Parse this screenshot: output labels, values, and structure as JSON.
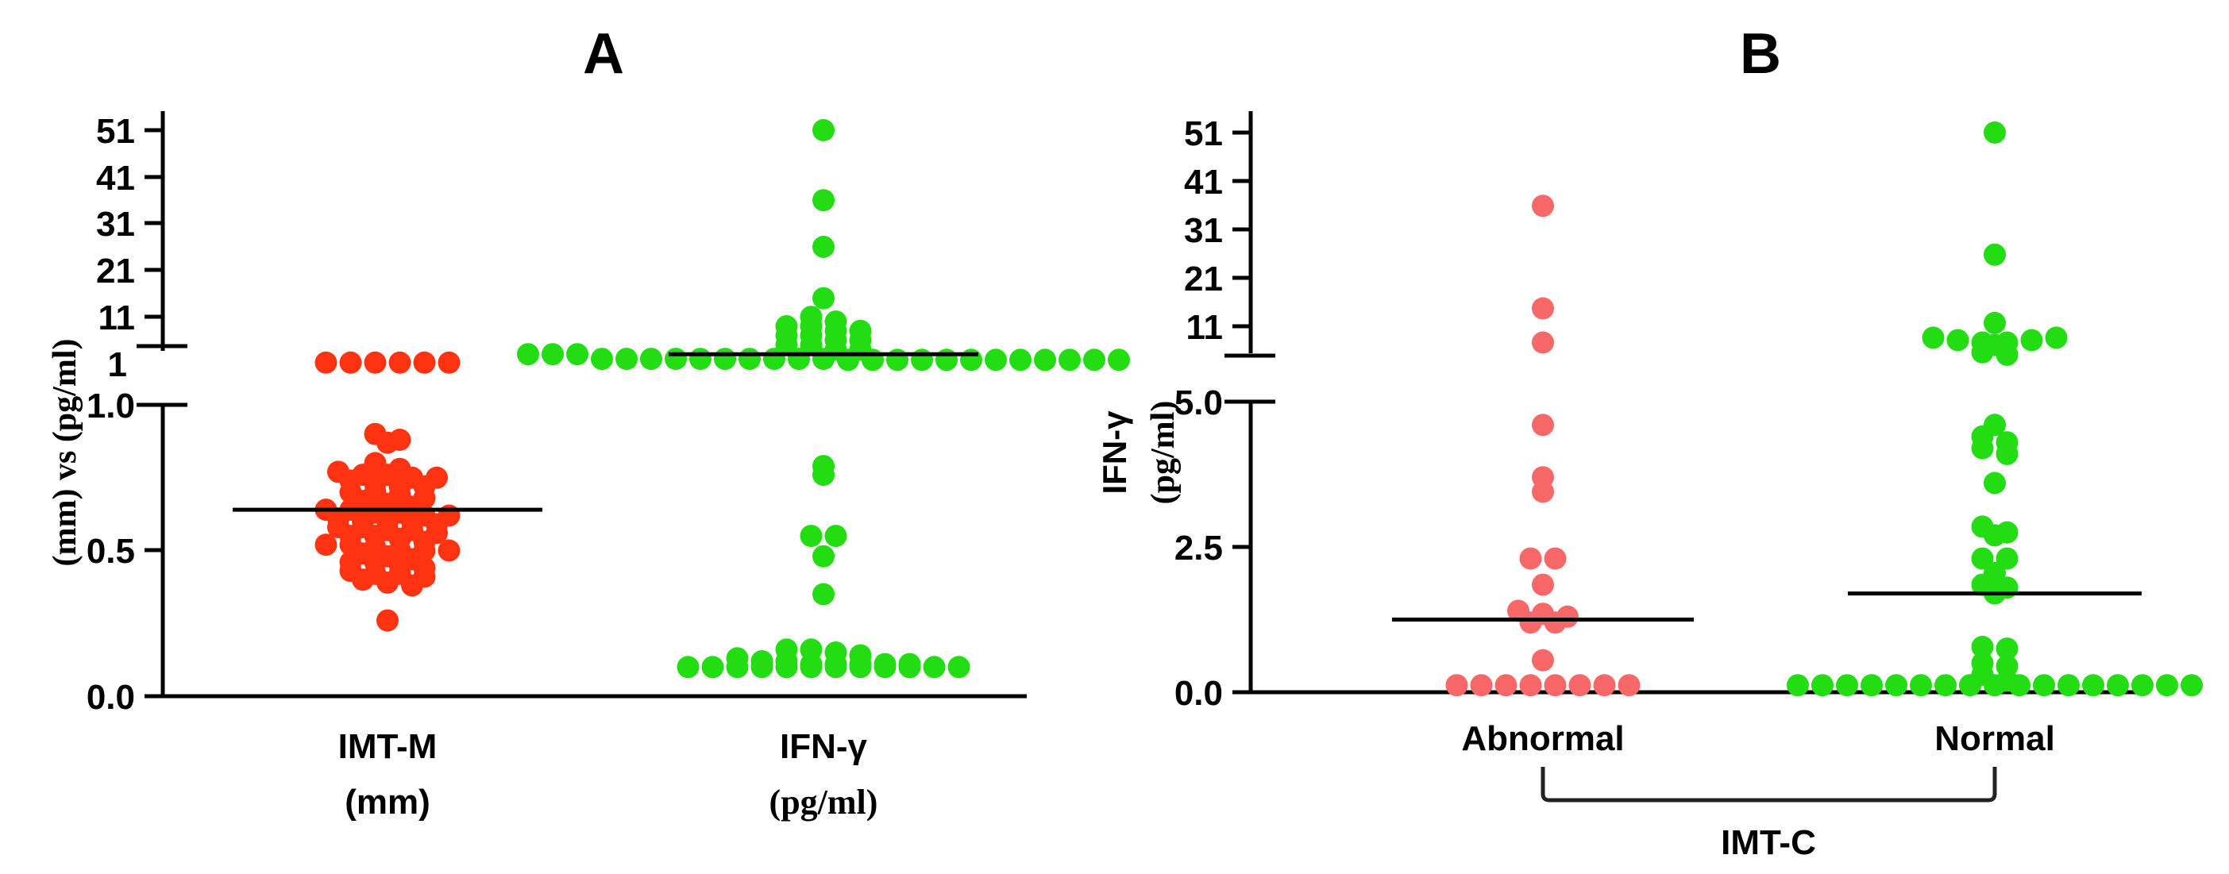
{
  "chart_data": [
    {
      "panel": "A",
      "type": "scatter",
      "title": "A",
      "ylabel": "(mm) vs (pg/ml)",
      "y_upper_ticks": [
        "51",
        "41",
        "31",
        "21",
        "11",
        "1"
      ],
      "y_upper_values": [
        51,
        41,
        31,
        21,
        11,
        1
      ],
      "y_lower_ticks": [
        "1.0",
        "0.5",
        "0.0"
      ],
      "y_lower_values": [
        1.0,
        0.5,
        0.0
      ],
      "upper_range": [
        1,
        51
      ],
      "lower_range": [
        0,
        1
      ],
      "axis_break": true,
      "categories": [
        {
          "label": "IMT-M",
          "sublabel": "(mm)",
          "sublabel_font": "sans"
        },
        {
          "label": "IFN-γ",
          "sublabel": "(pg/ml)",
          "sublabel_font": "serif"
        }
      ],
      "series": [
        {
          "name": "IMT-M",
          "color": "#ff3311",
          "median": 0.64,
          "values": [
            1.2,
            1.2,
            1.2,
            1.2,
            1.2,
            1.2,
            0.9,
            0.88,
            0.87,
            0.8,
            0.78,
            0.77,
            0.76,
            0.76,
            0.75,
            0.75,
            0.74,
            0.73,
            0.72,
            0.72,
            0.7,
            0.7,
            0.69,
            0.68,
            0.67,
            0.66,
            0.65,
            0.64,
            0.64,
            0.63,
            0.63,
            0.62,
            0.62,
            0.61,
            0.6,
            0.6,
            0.6,
            0.59,
            0.58,
            0.58,
            0.57,
            0.57,
            0.56,
            0.55,
            0.55,
            0.54,
            0.53,
            0.52,
            0.52,
            0.51,
            0.5,
            0.5,
            0.5,
            0.49,
            0.48,
            0.47,
            0.46,
            0.46,
            0.45,
            0.44,
            0.43,
            0.42,
            0.42,
            0.41,
            0.4,
            0.39,
            0.38,
            0.26
          ]
        },
        {
          "name": "IFN-γ",
          "color": "#22dd11",
          "median": 3.0,
          "values": [
            51,
            36,
            26,
            15,
            11,
            10,
            9,
            9,
            8,
            8,
            7,
            7,
            6,
            6,
            5,
            5,
            4,
            4,
            3,
            3,
            3,
            2,
            2,
            2,
            2,
            2,
            2,
            2,
            2,
            2,
            2,
            1.8,
            1.8,
            1.8,
            1.8,
            1.8,
            1.8,
            1.8,
            1.8,
            1.8,
            1.8,
            1.8,
            1.8,
            0.79,
            0.76,
            0.55,
            0.55,
            0.48,
            0.35,
            0.16,
            0.16,
            0.15,
            0.14,
            0.13,
            0.12,
            0.12,
            0.11,
            0.11,
            0.11,
            0.11,
            0.11,
            0.1,
            0.1,
            0.1,
            0.1,
            0.1,
            0.1,
            0.1,
            0.1,
            0.1,
            0.1,
            0.1,
            0.1
          ]
        }
      ]
    },
    {
      "panel": "B",
      "type": "scatter",
      "title": "B",
      "ylabel": "IFN-γ",
      "ylabel2": "(pg/ml)",
      "y_upper_ticks": [
        "51",
        "41",
        "31",
        "21",
        "11"
      ],
      "y_upper_values": [
        51,
        41,
        31,
        21,
        11
      ],
      "y_lower_ticks": [
        "5.0",
        "2.5",
        "0.0"
      ],
      "y_lower_values": [
        5.0,
        2.5,
        0.0
      ],
      "upper_range": [
        5,
        51
      ],
      "lower_range": [
        0,
        5
      ],
      "axis_break": true,
      "group_label": "IMT-C",
      "categories": [
        {
          "label": "Abnormal"
        },
        {
          "label": "Normal"
        }
      ],
      "series": [
        {
          "name": "Abnormal",
          "color": "#f86868",
          "median": 1.25,
          "values": [
            36,
            15,
            8,
            4.6,
            3.7,
            3.45,
            2.3,
            2.3,
            1.85,
            1.4,
            1.35,
            1.3,
            1.2,
            1.2,
            0.55,
            0.12,
            0.12,
            0.12,
            0.12,
            0.12,
            0.12,
            0.12,
            0.12
          ]
        },
        {
          "name": "Normal",
          "color": "#22dd11",
          "median": 1.7,
          "values": [
            51,
            26,
            12,
            9,
            8.5,
            8,
            7.5,
            8,
            8.5,
            9,
            6,
            5.5,
            4.6,
            4.4,
            4.3,
            4.2,
            4.1,
            3.6,
            2.85,
            2.75,
            2.7,
            2.3,
            2.3,
            2.05,
            1.85,
            1.8,
            1.7,
            0.78,
            0.75,
            0.5,
            0.45,
            0.3,
            0.2,
            0.12,
            0.12,
            0.12,
            0.12,
            0.12,
            0.12,
            0.12,
            0.12,
            0.12,
            0.12,
            0.12,
            0.12,
            0.12,
            0.12,
            0.12,
            0.12,
            0.12
          ]
        }
      ]
    }
  ]
}
